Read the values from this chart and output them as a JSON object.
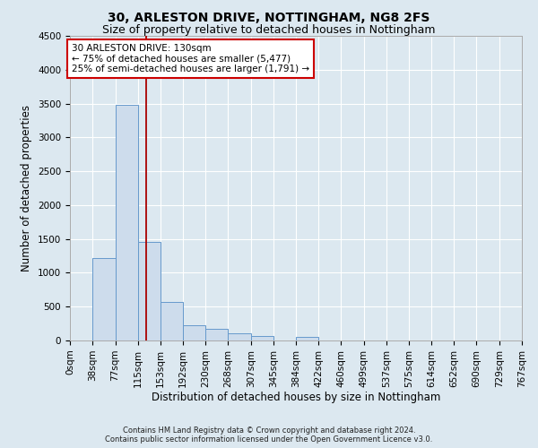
{
  "title": "30, ARLESTON DRIVE, NOTTINGHAM, NG8 2FS",
  "subtitle": "Size of property relative to detached houses in Nottingham",
  "xlabel": "Distribution of detached houses by size in Nottingham",
  "ylabel": "Number of detached properties",
  "bin_edges": [
    0,
    38,
    77,
    115,
    153,
    192,
    230,
    268,
    307,
    345,
    384,
    422,
    460,
    499,
    537,
    575,
    614,
    652,
    690,
    729,
    767
  ],
  "bar_heights": [
    0,
    1220,
    3480,
    1450,
    570,
    230,
    170,
    110,
    65,
    0,
    50,
    0,
    0,
    0,
    0,
    0,
    0,
    0,
    0,
    0
  ],
  "bar_color": "#cddcec",
  "bar_edge_color": "#6699cc",
  "property_line_x": 130,
  "property_line_color": "#aa0000",
  "ylim": [
    0,
    4500
  ],
  "xlim": [
    0,
    767
  ],
  "annotation_text": "30 ARLESTON DRIVE: 130sqm\n← 75% of detached houses are smaller (5,477)\n25% of semi-detached houses are larger (1,791) →",
  "annotation_box_facecolor": "#ffffff",
  "annotation_box_edgecolor": "#cc0000",
  "footer_line1": "Contains HM Land Registry data © Crown copyright and database right 2024.",
  "footer_line2": "Contains public sector information licensed under the Open Government Licence v3.0.",
  "fig_facecolor": "#dce8f0",
  "plot_facecolor": "#dce8f0",
  "title_fontsize": 10,
  "subtitle_fontsize": 9,
  "tick_label_fontsize": 7.5,
  "ylabel_fontsize": 8.5,
  "xlabel_fontsize": 8.5,
  "annotation_fontsize": 7.5,
  "footer_fontsize": 6,
  "yticks": [
    0,
    500,
    1000,
    1500,
    2000,
    2500,
    3000,
    3500,
    4000,
    4500
  ]
}
